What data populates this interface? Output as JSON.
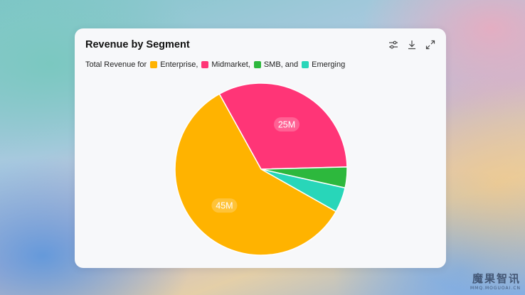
{
  "card": {
    "title": "Revenue by Segment",
    "legend_prefix": "Total Revenue for",
    "toolbar": [
      {
        "icon": "sliders-icon"
      },
      {
        "icon": "download-icon"
      },
      {
        "icon": "expand-icon"
      }
    ]
  },
  "watermark": {
    "main": "魔果智讯",
    "sub": "MMQ.MOGUOAI.CN"
  },
  "chart_data": {
    "type": "pie",
    "title": "Revenue by Segment",
    "subtitle": "Total Revenue for Enterprise, Midmarket, SMB, and Emerging",
    "slices": [
      {
        "name": "Midmarket",
        "value": 25,
        "label": "25M",
        "color": "#ff3577"
      },
      {
        "name": "SMB",
        "value": 3,
        "label": "",
        "color": "#2db83d"
      },
      {
        "name": "Emerging",
        "value": 3.6,
        "label": "",
        "color": "#28d6b9"
      },
      {
        "name": "Enterprise",
        "value": 45,
        "label": "45M",
        "color": "#ffb300"
      }
    ],
    "legend": [
      {
        "name": "Enterprise",
        "color": "#ffb300",
        "suffix": ","
      },
      {
        "name": "Midmarket",
        "color": "#ff3577",
        "suffix": ","
      },
      {
        "name": "SMB, and",
        "color": "#2db83d",
        "suffix": ""
      },
      {
        "name": "Emerging",
        "color": "#28d6b9",
        "suffix": ""
      }
    ],
    "legend_placement": "top-left",
    "units": "M"
  }
}
